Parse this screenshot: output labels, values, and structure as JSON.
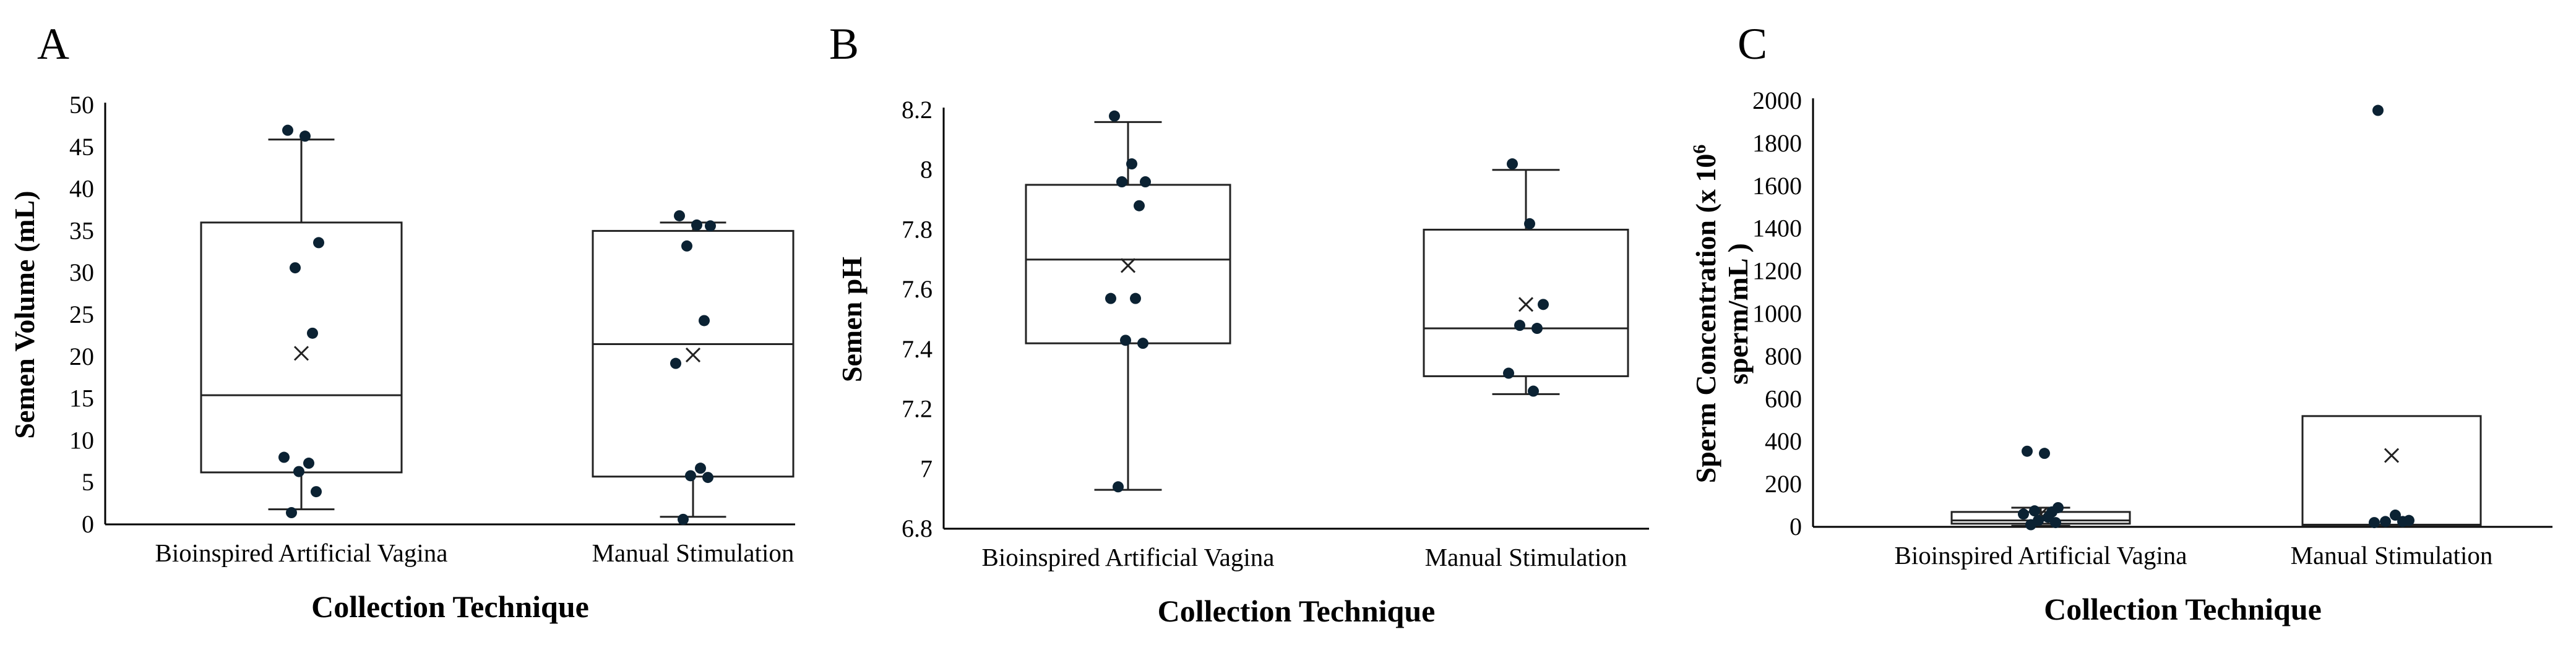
{
  "chart_data": [
    {
      "type": "box",
      "panel_letter": "A",
      "ylabel": "Semen Volume (mL)",
      "xlabel": "Collection Technique",
      "categories": [
        "Bioinspired Artificial Vagina",
        "Manual Stimulation"
      ],
      "ylim": [
        0,
        50
      ],
      "yticks": [
        0,
        5,
        10,
        15,
        20,
        25,
        30,
        35,
        40,
        45,
        50
      ],
      "grid": false,
      "boxes": [
        {
          "category": "Bioinspired Artificial Vagina",
          "min": 1.8,
          "q1": 6.2,
          "median": 15.4,
          "q3": 36.0,
          "max": 45.9,
          "mean": 20.4,
          "points": [
            47.0,
            46.3,
            33.6,
            30.6,
            22.8,
            8.0,
            7.3,
            6.3,
            3.9,
            1.4
          ]
        },
        {
          "category": "Manual Stimulation",
          "min": 0.9,
          "q1": 5.7,
          "median": 21.5,
          "q3": 35.0,
          "max": 36.0,
          "mean": 20.2,
          "points": [
            36.8,
            35.7,
            35.6,
            33.2,
            24.3,
            19.2,
            6.7,
            5.8,
            5.6,
            0.6
          ]
        }
      ]
    },
    {
      "type": "box",
      "panel_letter": "B",
      "ylabel": "Semen pH",
      "xlabel": "Collection Technique",
      "categories": [
        "Bioinspired Artificial Vagina",
        "Manual Stimulation"
      ],
      "ylim": [
        6.8,
        8.2
      ],
      "yticks": [
        6.8,
        7,
        7.2,
        7.4,
        7.6,
        7.8,
        8,
        8.2
      ],
      "ytick_labels": [
        "6.8",
        "7",
        "7.2",
        "7.4",
        "7.6",
        "7.8",
        "8",
        "8.2"
      ],
      "grid": false,
      "boxes": [
        {
          "category": "Bioinspired Artificial Vagina",
          "min": 6.93,
          "q1": 7.42,
          "median": 7.7,
          "q3": 7.95,
          "max": 8.16,
          "mean": 7.68,
          "points": [
            8.18,
            8.02,
            7.96,
            7.96,
            7.88,
            7.57,
            7.57,
            7.43,
            7.42,
            6.94
          ]
        },
        {
          "category": "Manual Stimulation",
          "min": 7.25,
          "q1": 7.31,
          "median": 7.47,
          "q3": 7.8,
          "max": 8.0,
          "mean": 7.55,
          "points": [
            8.02,
            7.82,
            7.55,
            7.48,
            7.47,
            7.32,
            7.26
          ]
        }
      ]
    },
    {
      "type": "box",
      "panel_letter": "C",
      "ylabel_lines": [
        "Sperm Concentration (x 10",
        "sperm/mL )"
      ],
      "ylabel_superscript": "6",
      "xlabel": "Collection Technique",
      "categories": [
        "Bioinspired Artificial Vagina",
        "Manual Stimulation"
      ],
      "ylim": [
        0,
        2000
      ],
      "yticks": [
        0,
        200,
        400,
        600,
        800,
        1000,
        1200,
        1400,
        1600,
        1800,
        2000
      ],
      "grid": false,
      "boxes": [
        {
          "category": "Bioinspired Artificial Vagina",
          "min": 5,
          "q1": 15,
          "median": 30,
          "q3": 70,
          "max": 90,
          "mean": 60,
          "points": [
            355,
            345,
            90,
            75,
            70,
            60,
            45,
            30,
            20,
            10
          ]
        },
        {
          "category": "Manual Stimulation",
          "min": 5,
          "q1": 5,
          "median": 10,
          "q3": 520,
          "max": 520,
          "mean": 335,
          "points": [
            1955,
            55,
            30,
            25,
            25,
            20
          ]
        }
      ]
    }
  ]
}
